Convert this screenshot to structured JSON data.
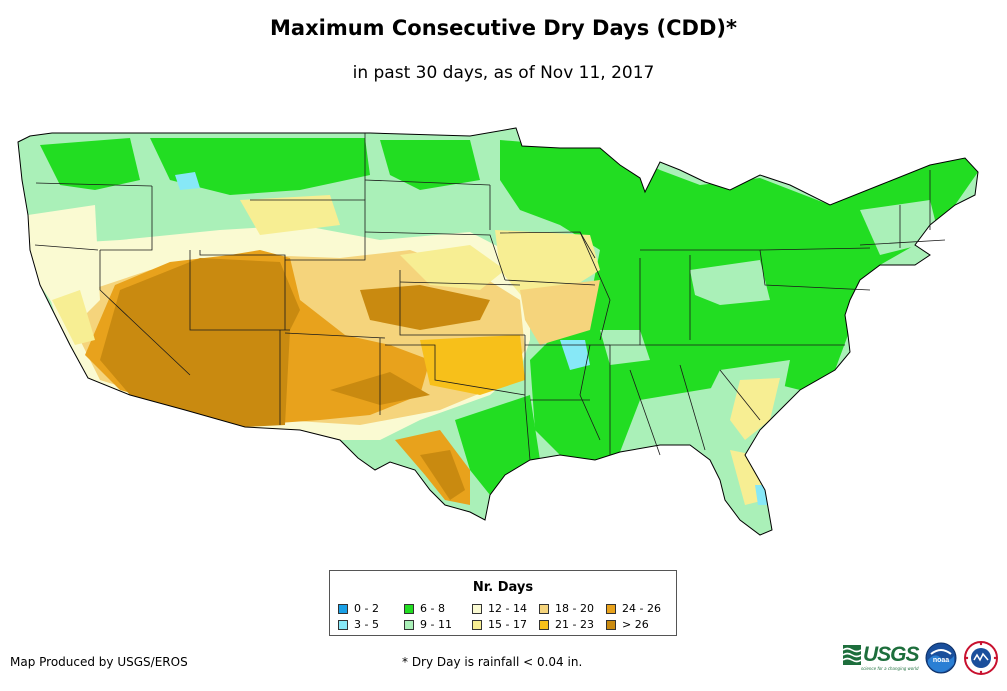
{
  "title": "Maximum Consecutive Dry Days (CDD)*",
  "subtitle": "in past 30 days, as of Nov 11, 2017",
  "legend": {
    "title": "Nr. Days",
    "items": [
      {
        "label": "0 - 2",
        "color": "#1aa0e6"
      },
      {
        "label": "3 - 5",
        "color": "#87e8f7"
      },
      {
        "label": "6 - 8",
        "color": "#22dd22"
      },
      {
        "label": "9 - 11",
        "color": "#aaf0b8"
      },
      {
        "label": "12 - 14",
        "color": "#fafad2"
      },
      {
        "label": "15 - 17",
        "color": "#f7ee93"
      },
      {
        "label": "18 - 20",
        "color": "#f5d47c"
      },
      {
        "label": "21 - 23",
        "color": "#f7c01a"
      },
      {
        "label": "24 - 26",
        "color": "#e8a21c"
      },
      {
        "label": "> 26",
        "color": "#c98a10"
      }
    ]
  },
  "credit": "Map Produced by USGS/EROS",
  "footnote": "* Dry Day is rainfall < 0.04 in.",
  "logos": {
    "usgs": "USGS",
    "usgs_tagline": "science for a changing world",
    "noaa": "noaa",
    "nws_icon": "nws-logo-icon"
  }
}
